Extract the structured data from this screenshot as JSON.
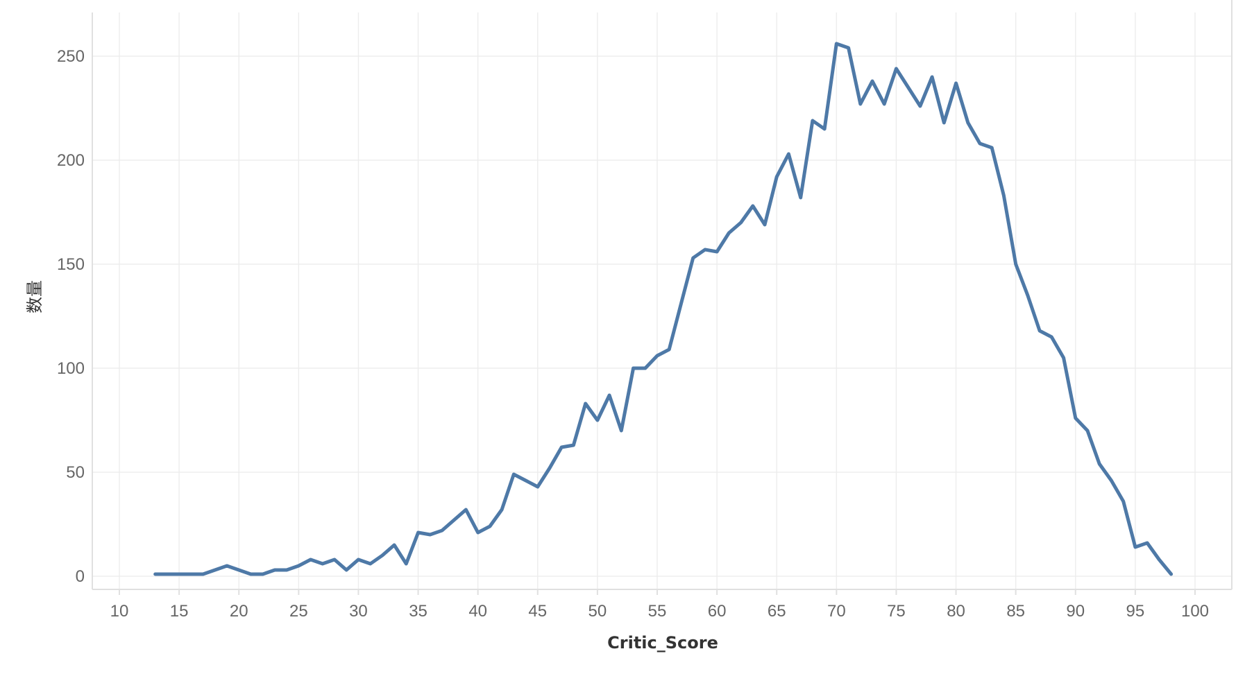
{
  "chart_data": {
    "type": "line",
    "title": "",
    "xlabel": "Critic_Score",
    "ylabel": "数量",
    "xlim": [
      8,
      102
    ],
    "ylim": [
      -5,
      270
    ],
    "xticks": [
      10,
      15,
      20,
      25,
      30,
      35,
      40,
      45,
      50,
      55,
      60,
      65,
      70,
      75,
      80,
      85,
      90,
      95,
      100
    ],
    "yticks": [
      0,
      50,
      100,
      150,
      200,
      250
    ],
    "grid": true,
    "legend": "none",
    "line_color": "#4e79a7",
    "series": [
      {
        "x": [
          13,
          14,
          15,
          16,
          17,
          18,
          19,
          20,
          21,
          22,
          23,
          24,
          25,
          26,
          27,
          28,
          29,
          30,
          31,
          32,
          33,
          34,
          35,
          36,
          37,
          38,
          39,
          40,
          41,
          42,
          43,
          44,
          45,
          46,
          47,
          48,
          49,
          50,
          51,
          52,
          53,
          54,
          55,
          56,
          57,
          58,
          59,
          60,
          61,
          62,
          63,
          64,
          65,
          66,
          67,
          68,
          69,
          70,
          71,
          72,
          73,
          74,
          75,
          76,
          77,
          78,
          79,
          80,
          81,
          82,
          83,
          84,
          85,
          86,
          87,
          88,
          89,
          90,
          91,
          92,
          93,
          94,
          95,
          96,
          97,
          98
        ],
        "y": [
          1,
          1,
          1,
          1,
          1,
          3,
          5,
          3,
          1,
          1,
          3,
          3,
          5,
          8,
          6,
          8,
          3,
          8,
          6,
          10,
          15,
          6,
          21,
          20,
          22,
          27,
          32,
          21,
          24,
          32,
          49,
          46,
          43,
          52,
          62,
          63,
          83,
          75,
          87,
          70,
          100,
          100,
          106,
          109,
          131,
          153,
          157,
          156,
          165,
          170,
          178,
          169,
          192,
          203,
          182,
          219,
          215,
          256,
          254,
          227,
          238,
          227,
          244,
          235,
          226,
          240,
          218,
          237,
          218,
          208,
          206,
          183,
          150,
          135,
          118,
          115,
          105,
          76,
          70,
          54,
          46,
          36,
          14,
          16,
          8,
          1
        ]
      }
    ]
  }
}
